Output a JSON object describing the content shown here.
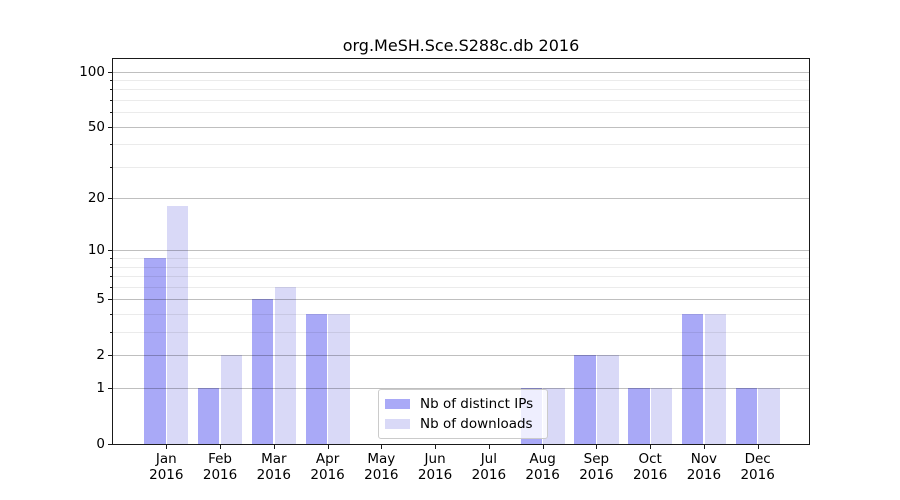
{
  "chart_data": {
    "type": "bar",
    "title": "org.MeSH.Sce.S288c.db 2016",
    "categories": [
      "Jan 2016",
      "Feb 2016",
      "Mar 2016",
      "Apr 2016",
      "May 2016",
      "Jun 2016",
      "Jul 2016",
      "Aug 2016",
      "Sep 2016",
      "Oct 2016",
      "Nov 2016",
      "Dec 2016"
    ],
    "series": [
      {
        "name": "Nb of distinct IPs",
        "color": "#a9a9f7",
        "values": [
          9,
          1,
          5,
          4,
          0,
          0,
          0,
          1,
          2,
          1,
          4,
          1
        ]
      },
      {
        "name": "Nb of downloads",
        "color": "#d9d9f7",
        "values": [
          18,
          2,
          6,
          4,
          0,
          0,
          0,
          1,
          2,
          1,
          4,
          1
        ]
      }
    ],
    "xlabel": "",
    "ylabel": "",
    "yscale": "log10(1+y)",
    "ylim": [
      0,
      117
    ],
    "y_major_ticks": [
      0,
      1,
      2,
      5,
      10,
      20,
      50,
      100
    ],
    "y_minor_ticks": [
      3,
      4,
      6,
      7,
      8,
      9,
      30,
      40,
      60,
      70,
      80,
      90
    ],
    "grid": "horizontal",
    "legend_position": "lower center"
  }
}
